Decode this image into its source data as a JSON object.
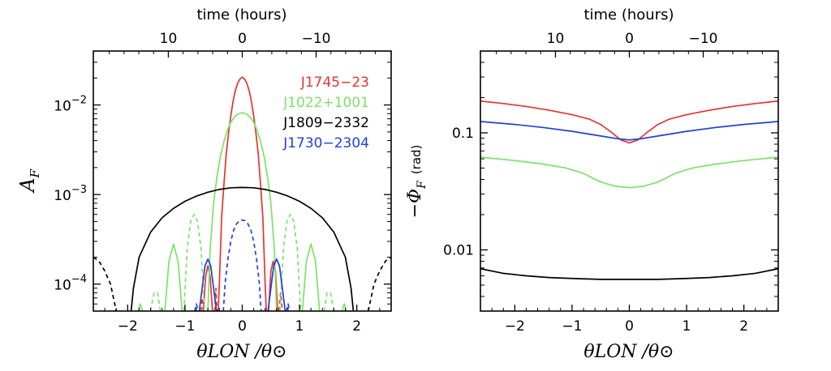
{
  "chart_data": [
    {
      "type": "line",
      "xlabel": "θLON /θ⊙",
      "ylabel": "A_F",
      "ylabel_main": "A",
      "ylabel_sub": "F",
      "top_axis_label": "time (hours)",
      "top_ticks": [
        {
          "at": -1.29,
          "label": "10"
        },
        {
          "at": 0,
          "label": "0"
        },
        {
          "at": 1.29,
          "label": "−10"
        }
      ],
      "x_ticks": [
        {
          "v": -2,
          "label": "−2"
        },
        {
          "v": -1,
          "label": "−1"
        },
        {
          "v": 0,
          "label": "0"
        },
        {
          "v": 1,
          "label": "1"
        },
        {
          "v": 2,
          "label": "2"
        }
      ],
      "y_scale": "log",
      "y_ticks": [
        {
          "v": 0.0001,
          "base": "10",
          "exp": "−4"
        },
        {
          "v": 0.001,
          "base": "10",
          "exp": "−3"
        },
        {
          "v": 0.01,
          "base": "10",
          "exp": "−2"
        }
      ],
      "xlim": [
        -2.6,
        2.6
      ],
      "ylim": [
        5e-05,
        0.04
      ],
      "legend_position": "top-right",
      "grid": false,
      "series": [
        {
          "name": "J1745−23",
          "color": "#e8332c",
          "key": "red"
        },
        {
          "name": "J1022+1001",
          "color": "#7be36a",
          "key": "green"
        },
        {
          "name": "J1809−2332",
          "color": "#000000",
          "key": "black"
        },
        {
          "name": "J1730−2304",
          "color": "#1f3fe0",
          "key": "blue"
        }
      ],
      "curves": [
        {
          "series": "red",
          "dash": false,
          "x": [
            -0.42,
            -0.4,
            -0.36,
            -0.32,
            -0.28,
            -0.24,
            -0.2,
            -0.16,
            -0.12,
            -0.08,
            -0.04,
            0,
            0.04,
            0.08,
            0.12,
            0.16,
            0.2,
            0.24,
            0.28,
            0.32,
            0.36,
            0.4,
            0.42
          ],
          "y": [
            5e-05,
            0.0001,
            0.00055,
            0.0013,
            0.0028,
            0.0048,
            0.0075,
            0.011,
            0.0145,
            0.0175,
            0.0195,
            0.0205,
            0.0195,
            0.0175,
            0.0145,
            0.011,
            0.0075,
            0.0048,
            0.0028,
            0.0013,
            0.00055,
            0.0001,
            5e-05
          ]
        },
        {
          "series": "red",
          "dash": false,
          "x": [
            -0.68,
            -0.64,
            -0.6,
            -0.56,
            -0.52
          ],
          "y": [
            5e-05,
            0.00012,
            0.00016,
            0.00012,
            5e-05
          ]
        },
        {
          "series": "red",
          "dash": false,
          "x": [
            0.46,
            0.5,
            0.54,
            0.58,
            0.62
          ],
          "y": [
            5e-05,
            0.00014,
            0.00018,
            0.00014,
            5e-05
          ]
        },
        {
          "series": "red",
          "dash": true,
          "x": [
            -0.72,
            -0.7,
            -0.68
          ],
          "y": [
            5e-05,
            7e-05,
            5e-05
          ]
        },
        {
          "series": "red",
          "dash": true,
          "x": [
            -0.48,
            -0.46,
            -0.44
          ],
          "y": [
            5e-05,
            9e-05,
            5e-05
          ]
        },
        {
          "series": "red",
          "dash": true,
          "x": [
            0.64,
            0.67,
            0.7
          ],
          "y": [
            5e-05,
            8e-05,
            5e-05
          ]
        },
        {
          "series": "green",
          "dash": false,
          "x": [
            -0.6,
            -0.56,
            -0.5,
            -0.44,
            -0.38,
            -0.32,
            -0.26,
            -0.2,
            -0.14,
            -0.08,
            0,
            0.08,
            0.14,
            0.2,
            0.26,
            0.32,
            0.38,
            0.44,
            0.5,
            0.56,
            0.6
          ],
          "y": [
            5e-05,
            0.00025,
            0.0008,
            0.0016,
            0.0027,
            0.0039,
            0.0052,
            0.0064,
            0.0073,
            0.0079,
            0.0082,
            0.0079,
            0.0073,
            0.0064,
            0.0052,
            0.0039,
            0.0027,
            0.0016,
            0.0008,
            0.00025,
            5e-05
          ]
        },
        {
          "series": "green",
          "dash": false,
          "x": [
            -1.35,
            -1.28,
            -1.2,
            -1.12,
            -1.05
          ],
          "y": [
            5e-05,
            0.00018,
            0.00028,
            0.00018,
            5e-05
          ]
        },
        {
          "series": "green",
          "dash": false,
          "x": [
            1.05,
            1.12,
            1.2,
            1.28,
            1.35
          ],
          "y": [
            5e-05,
            0.00018,
            0.00028,
            0.00018,
            5e-05
          ]
        },
        {
          "series": "green",
          "dash": false,
          "x": [
            -1.82,
            -1.78,
            -1.74
          ],
          "y": [
            5e-05,
            6e-05,
            5e-05
          ]
        },
        {
          "series": "green",
          "dash": false,
          "x": [
            1.74,
            1.78,
            1.82
          ],
          "y": [
            5e-05,
            6e-05,
            5e-05
          ]
        },
        {
          "series": "green",
          "dash": true,
          "x": [
            -1.02,
            -0.96,
            -0.9,
            -0.84,
            -0.78,
            -0.72,
            -0.66
          ],
          "y": [
            5e-05,
            0.00025,
            0.0005,
            0.0006,
            0.0005,
            0.00025,
            5e-05
          ]
        },
        {
          "series": "green",
          "dash": true,
          "x": [
            0.66,
            0.72,
            0.78,
            0.84,
            0.9,
            0.96,
            1.02
          ],
          "y": [
            5e-05,
            0.00025,
            0.0005,
            0.0006,
            0.0005,
            0.00025,
            5e-05
          ]
        },
        {
          "series": "green",
          "dash": true,
          "x": [
            -1.6,
            -1.54,
            -1.48,
            -1.43
          ],
          "y": [
            5e-05,
            8e-05,
            8e-05,
            5e-05
          ]
        },
        {
          "series": "green",
          "dash": true,
          "x": [
            1.43,
            1.48,
            1.54,
            1.6
          ],
          "y": [
            5e-05,
            8e-05,
            8e-05,
            5e-05
          ]
        },
        {
          "series": "black",
          "dash": false,
          "x": [
            -1.94,
            -1.9,
            -1.8,
            -1.6,
            -1.4,
            -1.2,
            -1,
            -0.8,
            -0.6,
            -0.4,
            -0.2,
            0,
            0.2,
            0.4,
            0.6,
            0.8,
            1,
            1.2,
            1.4,
            1.6,
            1.8,
            1.9,
            1.94
          ],
          "y": [
            5e-05,
            9e-05,
            0.0002,
            0.00038,
            0.00055,
            0.0007,
            0.00084,
            0.00096,
            0.00106,
            0.00114,
            0.00119,
            0.0012,
            0.00119,
            0.00114,
            0.00106,
            0.00096,
            0.00084,
            0.0007,
            0.00055,
            0.00038,
            0.0002,
            9e-05,
            5e-05
          ]
        },
        {
          "series": "black",
          "dash": true,
          "x": [
            -2.6,
            -2.5,
            -2.4,
            -2.3,
            -2.2
          ],
          "y": [
            0.0002,
            0.00018,
            0.00014,
            0.0001,
            5e-05
          ]
        },
        {
          "series": "black",
          "dash": true,
          "x": [
            2.2,
            2.3,
            2.4,
            2.5,
            2.6
          ],
          "y": [
            5e-05,
            0.0001,
            0.00014,
            0.00018,
            0.0002
          ]
        },
        {
          "series": "blue",
          "dash": true,
          "x": [
            -0.33,
            -0.3,
            -0.25,
            -0.2,
            -0.15,
            -0.1,
            -0.05,
            0,
            0.05,
            0.1,
            0.15,
            0.2,
            0.25,
            0.3,
            0.33
          ],
          "y": [
            5e-05,
            0.0001,
            0.00019,
            0.0003,
            0.0004,
            0.00047,
            0.00051,
            0.00052,
            0.00051,
            0.00047,
            0.0004,
            0.0003,
            0.00019,
            0.0001,
            5e-05
          ]
        },
        {
          "series": "blue",
          "dash": false,
          "x": [
            -0.75,
            -0.7,
            -0.65,
            -0.6,
            -0.55,
            -0.5,
            -0.45
          ],
          "y": [
            5e-05,
            9e-05,
            0.00016,
            0.00019,
            0.00016,
            9e-05,
            5e-05
          ]
        },
        {
          "series": "blue",
          "dash": false,
          "x": [
            0.45,
            0.5,
            0.55,
            0.6,
            0.65,
            0.7,
            0.75
          ],
          "y": [
            5e-05,
            9e-05,
            0.00016,
            0.00019,
            0.00016,
            9e-05,
            5e-05
          ]
        },
        {
          "series": "blue",
          "dash": true,
          "x": [
            -0.83,
            -0.8,
            -0.77
          ],
          "y": [
            5e-05,
            6e-05,
            5e-05
          ]
        },
        {
          "series": "blue",
          "dash": true,
          "x": [
            0.77,
            0.8,
            0.83
          ],
          "y": [
            5e-05,
            6e-05,
            5e-05
          ]
        }
      ]
    },
    {
      "type": "line",
      "xlabel": "θLON /θ⊙",
      "ylabel": "−Φ_F (rad)",
      "ylabel_main": "−Φ",
      "ylabel_sub": "F",
      "ylabel_unit": "(rad)",
      "top_axis_label": "time (hours)",
      "top_ticks": [
        {
          "at": -1.29,
          "label": "10"
        },
        {
          "at": 0,
          "label": "0"
        },
        {
          "at": 1.29,
          "label": "−10"
        }
      ],
      "x_ticks": [
        {
          "v": -2,
          "label": "−2"
        },
        {
          "v": -1,
          "label": "−1"
        },
        {
          "v": 0,
          "label": "0"
        },
        {
          "v": 1,
          "label": "1"
        },
        {
          "v": 2,
          "label": "2"
        }
      ],
      "y_scale": "log",
      "y_ticks": [
        {
          "v": 0.01,
          "label": "0.01"
        },
        {
          "v": 0.1,
          "label": "0.1"
        }
      ],
      "xlim": [
        -2.6,
        2.6
      ],
      "ylim": [
        0.003,
        0.5
      ],
      "grid": false,
      "series": [
        {
          "name": "J1745−23",
          "color": "#e8332c",
          "key": "red"
        },
        {
          "name": "J1022+1001",
          "color": "#7be36a",
          "key": "green"
        },
        {
          "name": "J1809−2332",
          "color": "#000000",
          "key": "black"
        },
        {
          "name": "J1730−2304",
          "color": "#1f3fe0",
          "key": "blue"
        }
      ],
      "curves": [
        {
          "series": "red",
          "dash": false,
          "x": [
            -2.6,
            -2.2,
            -1.8,
            -1.4,
            -1,
            -0.7,
            -0.5,
            -0.3,
            -0.15,
            0,
            0.15,
            0.3,
            0.5,
            0.7,
            1,
            1.4,
            1.8,
            2.2,
            2.6
          ],
          "y": [
            0.187,
            0.178,
            0.168,
            0.156,
            0.143,
            0.131,
            0.118,
            0.1,
            0.087,
            0.082,
            0.087,
            0.1,
            0.118,
            0.131,
            0.143,
            0.156,
            0.168,
            0.178,
            0.187
          ]
        },
        {
          "series": "blue",
          "dash": false,
          "x": [
            -2.6,
            -2,
            -1.5,
            -1,
            -0.5,
            -0.2,
            0,
            0.2,
            0.5,
            1,
            1.5,
            2,
            2.6
          ],
          "y": [
            0.125,
            0.118,
            0.111,
            0.103,
            0.094,
            0.089,
            0.087,
            0.089,
            0.094,
            0.103,
            0.111,
            0.118,
            0.125
          ]
        },
        {
          "series": "green",
          "dash": false,
          "x": [
            -2.6,
            -2,
            -1.5,
            -1.1,
            -0.8,
            -0.5,
            -0.25,
            0,
            0.25,
            0.5,
            0.8,
            1.1,
            1.5,
            2,
            2.6
          ],
          "y": [
            0.062,
            0.058,
            0.054,
            0.05,
            0.045,
            0.038,
            0.035,
            0.034,
            0.035,
            0.038,
            0.045,
            0.05,
            0.054,
            0.058,
            0.062
          ]
        },
        {
          "series": "black",
          "dash": false,
          "x": [
            -2.6,
            -2.2,
            -1.8,
            -1.4,
            -1,
            -0.5,
            0,
            0.5,
            1,
            1.4,
            1.8,
            2.2,
            2.6
          ],
          "y": [
            0.0069,
            0.0063,
            0.006,
            0.0058,
            0.0057,
            0.0056,
            0.0056,
            0.0056,
            0.0057,
            0.0058,
            0.006,
            0.0063,
            0.0069
          ]
        }
      ]
    }
  ]
}
